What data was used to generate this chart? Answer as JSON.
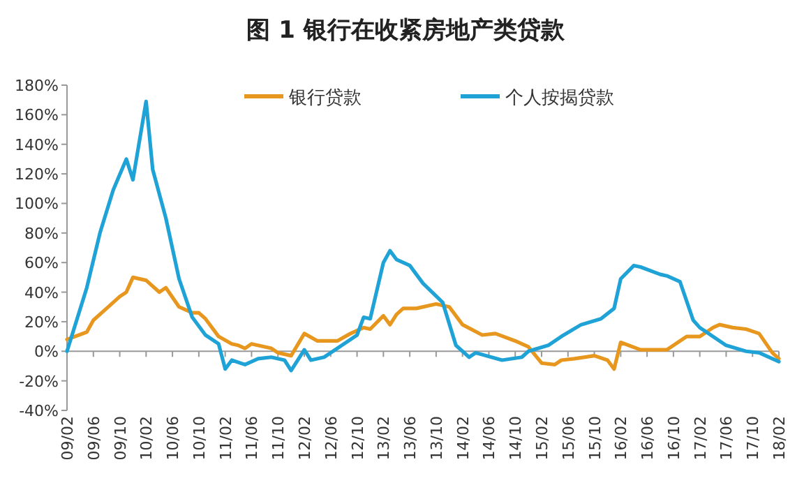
{
  "chart_data": {
    "type": "line",
    "title": "图 1 银行在收紧房地产类贷款",
    "legend": "top",
    "marker": "none",
    "line_style": "solid",
    "xlim": [
      "2009-02",
      "2018-02"
    ],
    "xticks": [
      {
        "value": "2009-02",
        "label": "09/02"
      },
      {
        "value": "2009-06",
        "label": "09/06"
      },
      {
        "value": "2009-10",
        "label": "09/10"
      },
      {
        "value": "2010-02",
        "label": "10/02"
      },
      {
        "value": "2010-06",
        "label": "10/06"
      },
      {
        "value": "2010-10",
        "label": "10/10"
      },
      {
        "value": "2011-02",
        "label": "11/02"
      },
      {
        "value": "2011-06",
        "label": "11/06"
      },
      {
        "value": "2011-10",
        "label": "11/10"
      },
      {
        "value": "2012-02",
        "label": "12/02"
      },
      {
        "value": "2012-06",
        "label": "12/06"
      },
      {
        "value": "2012-10",
        "label": "12/10"
      },
      {
        "value": "2013-02",
        "label": "13/02"
      },
      {
        "value": "2013-06",
        "label": "13/06"
      },
      {
        "value": "2013-10",
        "label": "13/10"
      },
      {
        "value": "2014-02",
        "label": "14/02"
      },
      {
        "value": "2014-06",
        "label": "14/06"
      },
      {
        "value": "2014-10",
        "label": "14/10"
      },
      {
        "value": "2015-02",
        "label": "15/02"
      },
      {
        "value": "2015-06",
        "label": "15/06"
      },
      {
        "value": "2015-10",
        "label": "15/10"
      },
      {
        "value": "2016-02",
        "label": "16/02"
      },
      {
        "value": "2016-06",
        "label": "16/06"
      },
      {
        "value": "2016-10",
        "label": "16/10"
      },
      {
        "value": "2017-02",
        "label": "17/02"
      },
      {
        "value": "2017-06",
        "label": "17/06"
      },
      {
        "value": "2017-10",
        "label": "17/10"
      },
      {
        "value": "2018-02",
        "label": "18/02"
      }
    ],
    "ylim": [
      -40,
      180
    ],
    "yticks": [
      {
        "value": -40,
        "label": "-40%"
      },
      {
        "value": -20,
        "label": "-20%"
      },
      {
        "value": 0,
        "label": "0%"
      },
      {
        "value": 20,
        "label": "20%"
      },
      {
        "value": 40,
        "label": "40%"
      },
      {
        "value": 60,
        "label": "60%"
      },
      {
        "value": 80,
        "label": "80%"
      },
      {
        "value": 100,
        "label": "100%"
      },
      {
        "value": 120,
        "label": "120%"
      },
      {
        "value": 140,
        "label": "140%"
      },
      {
        "value": 160,
        "label": "160%"
      },
      {
        "value": 180,
        "label": "180%"
      }
    ],
    "series": [
      {
        "name": "银行贷款",
        "color": "#e8971e",
        "x": [
          "2009-02",
          "2009-05",
          "2009-06",
          "2009-08",
          "2009-10",
          "2009-11",
          "2009-12",
          "2010-02",
          "2010-04",
          "2010-05",
          "2010-07",
          "2010-09",
          "2010-10",
          "2010-11",
          "2011-01",
          "2011-03",
          "2011-04",
          "2011-05",
          "2011-06",
          "2011-09",
          "2011-10",
          "2011-12",
          "2012-02",
          "2012-04",
          "2012-07",
          "2012-09",
          "2012-11",
          "2012-12",
          "2013-02",
          "2013-03",
          "2013-04",
          "2013-05",
          "2013-07",
          "2013-10",
          "2013-12",
          "2014-02",
          "2014-05",
          "2014-07",
          "2014-10",
          "2014-12",
          "2015-02",
          "2015-04",
          "2015-05",
          "2015-07",
          "2015-10",
          "2015-12",
          "2016-01",
          "2016-02",
          "2016-05",
          "2016-07",
          "2016-09",
          "2016-12",
          "2017-02",
          "2017-04",
          "2017-05",
          "2017-07",
          "2017-09",
          "2017-11",
          "2018-01",
          "2018-02"
        ],
        "values": [
          8,
          13,
          21,
          29,
          37,
          40,
          50,
          48,
          40,
          43,
          30,
          26,
          26,
          22,
          10,
          5,
          4,
          2,
          5,
          2,
          -1,
          -3,
          12,
          7,
          7,
          12,
          16,
          15,
          24,
          18,
          25,
          29,
          29,
          32,
          30,
          18,
          11,
          12,
          7,
          3,
          -8,
          -9,
          -6,
          -5,
          -3,
          -6,
          -12,
          6,
          1,
          1,
          1,
          10,
          10,
          16,
          18,
          16,
          15,
          12,
          -1,
          -5
        ]
      },
      {
        "name": "个人按揭贷款",
        "color": "#1fa2d6",
        "x": [
          "2009-02",
          "2009-05",
          "2009-07",
          "2009-09",
          "2009-11",
          "2009-12",
          "2010-02",
          "2010-03",
          "2010-05",
          "2010-07",
          "2010-09",
          "2010-11",
          "2011-01",
          "2011-02",
          "2011-03",
          "2011-05",
          "2011-07",
          "2011-09",
          "2011-11",
          "2011-12",
          "2012-02",
          "2012-03",
          "2012-05",
          "2012-07",
          "2012-10",
          "2012-11",
          "2012-12",
          "2013-02",
          "2013-03",
          "2013-04",
          "2013-06",
          "2013-08",
          "2013-11",
          "2014-01",
          "2014-03",
          "2014-04",
          "2014-08",
          "2014-11",
          "2014-12",
          "2015-03",
          "2015-05",
          "2015-08",
          "2015-11",
          "2016-01",
          "2016-02",
          "2016-04",
          "2016-05",
          "2016-08",
          "2016-09",
          "2016-11",
          "2017-01",
          "2017-02",
          "2017-04",
          "2017-06",
          "2017-09",
          "2017-11",
          "2018-02"
        ],
        "values": [
          0,
          43,
          80,
          109,
          130,
          116,
          169,
          123,
          90,
          49,
          23,
          11,
          5,
          -12,
          -6,
          -9,
          -5,
          -4,
          -6,
          -13,
          1,
          -6,
          -4,
          2,
          11,
          23,
          22,
          60,
          68,
          62,
          58,
          46,
          33,
          4,
          -4,
          -1,
          -6,
          -4,
          0,
          4,
          10,
          18,
          22,
          29,
          49,
          58,
          57,
          52,
          51,
          47,
          21,
          16,
          10,
          4,
          0,
          -1,
          -7
        ]
      }
    ]
  }
}
